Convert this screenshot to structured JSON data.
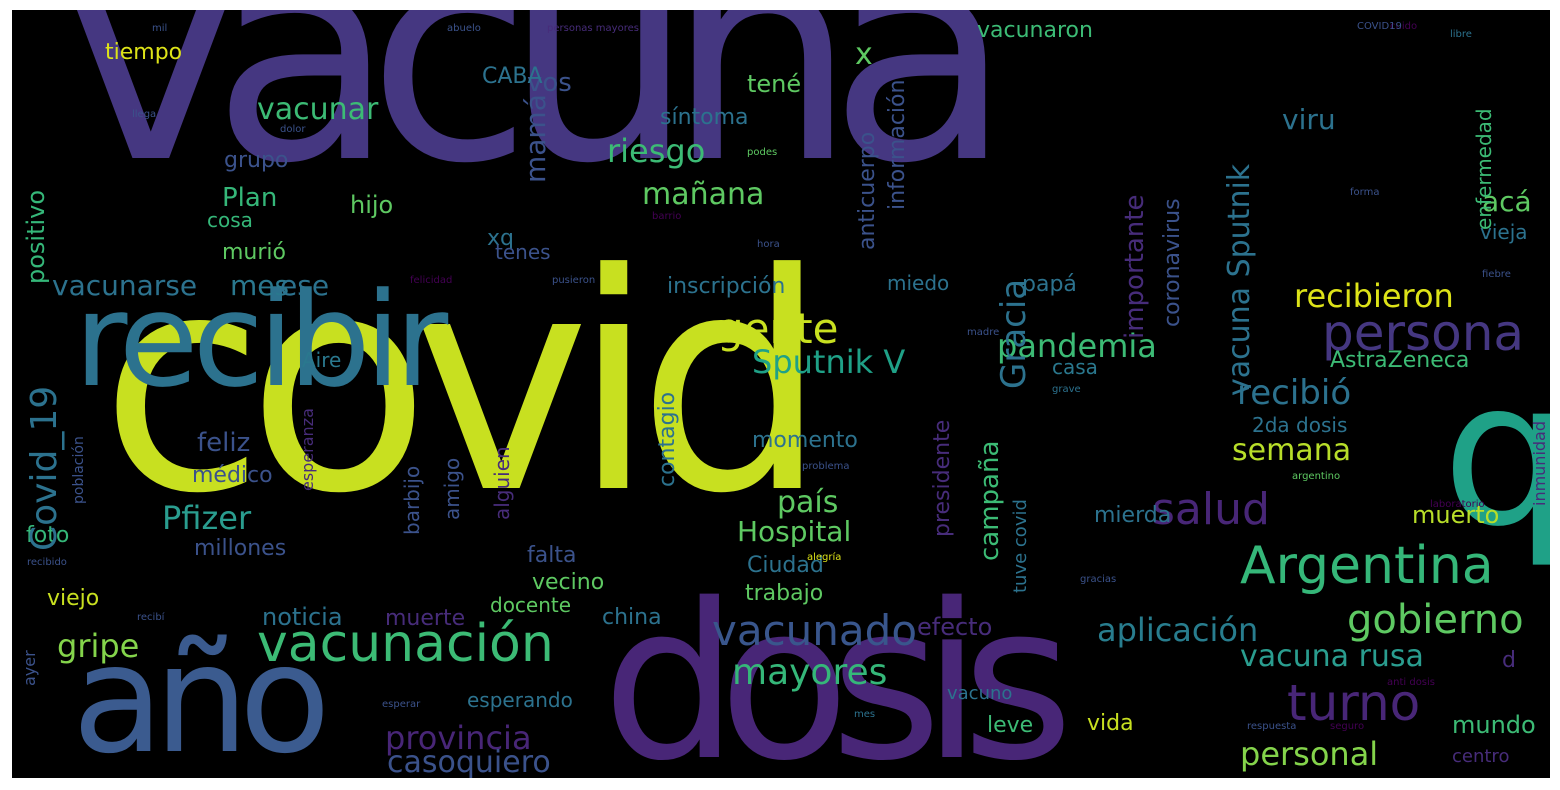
{
  "colors": {
    "background": "#000000",
    "palette": [
      "#440154",
      "#472c7a",
      "#3b528b",
      "#2c728e",
      "#21918c",
      "#28ae80",
      "#5ec962",
      "#addc30",
      "#fde725"
    ]
  },
  "words": [
    {
      "id": "vacuna",
      "text": "vacuna",
      "color": "#453781"
    },
    {
      "id": "covid",
      "text": "covid",
      "color": "#c8e020"
    },
    {
      "id": "dosis",
      "text": "dosis",
      "color": "#482677"
    },
    {
      "id": "ano",
      "text": "año",
      "color": "#3b5b8f"
    },
    {
      "id": "recibir",
      "text": "recibir",
      "color": "#2c728e"
    },
    {
      "id": "q",
      "text": "q",
      "color": "#1fa187"
    },
    {
      "id": "vacunacion",
      "text": "vacunación",
      "color": "#3cbb75"
    },
    {
      "id": "argentina",
      "text": "Argentina",
      "color": "#35b779"
    },
    {
      "id": "persona",
      "text": "persona",
      "color": "#453781"
    },
    {
      "id": "turno",
      "text": "turno",
      "color": "#482677"
    },
    {
      "id": "salud",
      "text": "salud",
      "color": "#482677"
    },
    {
      "id": "vacunado",
      "text": "vacunado",
      "color": "#39568c"
    },
    {
      "id": "gobierno",
      "text": "gobierno",
      "color": "#5ec962"
    },
    {
      "id": "gente",
      "text": "gente",
      "color": "#c8e020"
    },
    {
      "id": "mayores",
      "text": "mayores",
      "color": "#35b779"
    },
    {
      "id": "pfizer",
      "text": "Pfizer",
      "color": "#2a9d8f"
    },
    {
      "id": "sputnikv",
      "text": "Sputnik V",
      "color": "#1fa187"
    },
    {
      "id": "pandemia",
      "text": "pandemia",
      "color": "#3cbb75"
    },
    {
      "id": "recibieron",
      "text": "recibieron",
      "color": "#dde318"
    },
    {
      "id": "recibio",
      "text": "recibió",
      "color": "#2c728e"
    },
    {
      "id": "semana",
      "text": "semana",
      "color": "#b8de29"
    },
    {
      "id": "aplicacion",
      "text": "aplicación",
      "color": "#287d8e"
    },
    {
      "id": "vacunarusa",
      "text": "vacuna rusa",
      "color": "#2a9d8f"
    },
    {
      "id": "personal",
      "text": "personal",
      "color": "#84d44b"
    },
    {
      "id": "provincia",
      "text": "provincia",
      "color": "#482677"
    },
    {
      "id": "gripe",
      "text": "gripe",
      "color": "#84d44b"
    },
    {
      "id": "pais",
      "text": "país",
      "color": "#5ec962"
    },
    {
      "id": "hospital",
      "text": "Hospital",
      "color": "#5ec962"
    },
    {
      "id": "manana",
      "text": "mañana",
      "color": "#5ec962"
    },
    {
      "id": "riesgo",
      "text": "riesgo",
      "color": "#3cbb75"
    },
    {
      "id": "vacunar",
      "text": "vacunar",
      "color": "#3cbb75"
    },
    {
      "id": "vacunarse",
      "text": "vacunarse",
      "color": "#2c728e"
    },
    {
      "id": "mes",
      "text": "mes",
      "color": "#2a788e"
    },
    {
      "id": "ese",
      "text": "ese",
      "color": "#2c728e"
    },
    {
      "id": "casoquiero",
      "text": "casoquiero",
      "color": "#3b528b"
    },
    {
      "id": "vos",
      "text": "vos",
      "color": "#3b528b"
    },
    {
      "id": "x",
      "text": "x",
      "color": "#5ec962"
    },
    {
      "id": "tiempo",
      "text": "tiempo",
      "color": "#dde318"
    },
    {
      "id": "caba",
      "text": "CABA",
      "color": "#2c728e"
    },
    {
      "id": "vacunaron",
      "text": "vacunaron",
      "color": "#3cbb75"
    },
    {
      "id": "tene",
      "text": "tené",
      "color": "#5ec962"
    },
    {
      "id": "sintoma",
      "text": "síntoma",
      "color": "#2c728e"
    },
    {
      "id": "viru",
      "text": "viru",
      "color": "#2c728e"
    },
    {
      "id": "aca",
      "text": "acá",
      "color": "#5ec962"
    },
    {
      "id": "plan",
      "text": "Plan",
      "color": "#35b779"
    },
    {
      "id": "grupo",
      "text": "grupo",
      "color": "#3b528b"
    },
    {
      "id": "hijo",
      "text": "hijo",
      "color": "#5ec962"
    },
    {
      "id": "cosa",
      "text": "cosa",
      "color": "#35b779"
    },
    {
      "id": "xq",
      "text": "xq",
      "color": "#2c728e"
    },
    {
      "id": "murio",
      "text": "murió",
      "color": "#5ec962"
    },
    {
      "id": "tenes",
      "text": "tenes",
      "color": "#3b528b"
    },
    {
      "id": "inscripcion",
      "text": "inscripción",
      "color": "#2c728e"
    },
    {
      "id": "papa",
      "text": "papá",
      "color": "#2c728e"
    },
    {
      "id": "miedo",
      "text": "miedo",
      "color": "#2c728e"
    },
    {
      "id": "aire",
      "text": "Aire",
      "color": "#2a788e"
    },
    {
      "id": "casa",
      "text": "casa",
      "color": "#2a788e"
    },
    {
      "id": "astrazeneca",
      "text": "AstraZeneca",
      "color": "#3cbb75"
    },
    {
      "id": "vieja",
      "text": "vieja",
      "color": "#2c728e"
    },
    {
      "id": "feliz",
      "text": "feliz",
      "color": "#3b528b"
    },
    {
      "id": "medico",
      "text": "médico",
      "color": "#3b528b"
    },
    {
      "id": "momento",
      "text": "momento",
      "color": "#2c728e"
    },
    {
      "id": "foto",
      "text": "foto",
      "color": "#35b779"
    },
    {
      "id": "millones",
      "text": "millones",
      "color": "#3b528b"
    },
    {
      "id": "falta",
      "text": "falta",
      "color": "#3b528b"
    },
    {
      "id": "ciudad",
      "text": "Ciudad",
      "color": "#2c728e"
    },
    {
      "id": "vecino",
      "text": "vecino",
      "color": "#5ec962"
    },
    {
      "id": "trabajo",
      "text": "trabajo",
      "color": "#5ec962"
    },
    {
      "id": "viejo",
      "text": "viejo",
      "color": "#c8e020"
    },
    {
      "id": "noticia",
      "text": "noticia",
      "color": "#2c728e"
    },
    {
      "id": "muerte",
      "text": "muerte",
      "color": "#472c7a"
    },
    {
      "id": "docente",
      "text": "docente",
      "color": "#5ec962"
    },
    {
      "id": "china",
      "text": "china",
      "color": "#2c728e"
    },
    {
      "id": "efecto",
      "text": "efecto",
      "color": "#472c7a"
    },
    {
      "id": "muerto",
      "text": "muerto",
      "color": "#b8de29"
    },
    {
      "id": "mierda",
      "text": "mierda",
      "color": "#2c728e"
    },
    {
      "id": "d",
      "text": "d",
      "color": "#472c7a"
    },
    {
      "id": "mundo",
      "text": "mundo",
      "color": "#3cbb75"
    },
    {
      "id": "vida",
      "text": "vida",
      "color": "#c8e020"
    },
    {
      "id": "leve",
      "text": "leve",
      "color": "#3cbb75"
    },
    {
      "id": "vacuno",
      "text": "vacuno",
      "color": "#2c728e"
    },
    {
      "id": "esperando",
      "text": "esperando",
      "color": "#2c728e"
    },
    {
      "id": "centro",
      "text": "centro",
      "color": "#472c7a"
    },
    {
      "id": "2dadosis",
      "text": "2da dosis",
      "color": "#2c728e"
    },
    {
      "id": "covid19",
      "text": "Covid_19",
      "color": "#2c728e",
      "v": true
    },
    {
      "id": "positivo",
      "text": "positivo",
      "color": "#35b779",
      "v": true
    },
    {
      "id": "gracia",
      "text": "Gracia",
      "color": "#2c728e",
      "v": true
    },
    {
      "id": "mama",
      "text": "mamá",
      "color": "#3b528b",
      "v": true
    },
    {
      "id": "importante",
      "text": "importante",
      "color": "#472c7a",
      "v": true
    },
    {
      "id": "vacunasputnik",
      "text": "vacuna Sputnik",
      "color": "#2c728e",
      "v": true
    },
    {
      "id": "coronavirus",
      "text": "coronavirus",
      "color": "#3b528b",
      "v": true
    },
    {
      "id": "anticuerpo",
      "text": "anticuerpo",
      "color": "#3b528b",
      "v": true
    },
    {
      "id": "informacion",
      "text": "información",
      "color": "#3b528b",
      "v": true
    },
    {
      "id": "enfermedad",
      "text": "enfermedad",
      "color": "#3cbb75",
      "v": true
    },
    {
      "id": "campana",
      "text": "campaña",
      "color": "#3cbb75",
      "v": true
    },
    {
      "id": "contagio",
      "text": "contagio",
      "color": "#2c728e",
      "v": true
    },
    {
      "id": "presidente",
      "text": "presidente",
      "color": "#472c7a",
      "v": true
    },
    {
      "id": "alguien",
      "text": "alguien",
      "color": "#472c7a",
      "v": true
    },
    {
      "id": "barbijo",
      "text": "barbijo",
      "color": "#3b528b",
      "v": true
    },
    {
      "id": "amigo",
      "text": "amigo",
      "color": "#3b528b",
      "v": true
    },
    {
      "id": "esperanza",
      "text": "esperanza",
      "color": "#472c7a",
      "v": true
    },
    {
      "id": "poblacion",
      "text": "población",
      "color": "#3b528b",
      "v": true
    },
    {
      "id": "tuvecovid",
      "text": "tuve covid",
      "color": "#2c728e",
      "v": true
    },
    {
      "id": "ayer",
      "text": "ayer",
      "color": "#3b528b",
      "v": true
    },
    {
      "id": "inmunidad",
      "text": "inmunidad",
      "color": "#472c7a",
      "v": true
    },
    {
      "id": "personasmayores",
      "text": "personas mayores",
      "color": "#472c7a"
    },
    {
      "id": "abuelo",
      "text": "abuelo",
      "color": "#3b528b"
    },
    {
      "id": "llega",
      "text": "llega",
      "color": "#3b528b"
    },
    {
      "id": "dolor",
      "text": "dolor",
      "color": "#3b528b"
    },
    {
      "id": "hora",
      "text": "hora",
      "color": "#3b528b"
    },
    {
      "id": "barrio",
      "text": "barrio",
      "color": "#440154"
    },
    {
      "id": "podes",
      "text": "podes",
      "color": "#5ec962"
    },
    {
      "id": "felicidad",
      "text": "felicidad",
      "color": "#440154"
    },
    {
      "id": "pusieron",
      "text": "pusieron",
      "color": "#3b528b"
    },
    {
      "id": "libre",
      "text": "libre",
      "color": "#2c728e"
    },
    {
      "id": "forma",
      "text": "forma",
      "color": "#3b528b"
    },
    {
      "id": "fiebre",
      "text": "fiebre",
      "color": "#3b528b"
    },
    {
      "id": "madre",
      "text": "madre",
      "color": "#3b528b"
    },
    {
      "id": "grave",
      "text": "grave",
      "color": "#2c728e"
    },
    {
      "id": "problema",
      "text": "problema",
      "color": "#3b528b"
    },
    {
      "id": "alegria",
      "text": "alegría",
      "color": "#dde318"
    },
    {
      "id": "argentino",
      "text": "argentino",
      "color": "#5ec962"
    },
    {
      "id": "laboratorio",
      "text": "laboratorio",
      "color": "#440154"
    },
    {
      "id": "recibi",
      "text": "recibí",
      "color": "#3b528b"
    },
    {
      "id": "mes2",
      "text": "mes",
      "color": "#2c728e"
    },
    {
      "id": "respuesta",
      "text": "respuesta",
      "color": "#3b528b"
    },
    {
      "id": "seguro",
      "text": "seguro",
      "color": "#440154"
    },
    {
      "id": "antidosis",
      "text": "anti dosis",
      "color": "#440154"
    },
    {
      "id": "cuido",
      "text": "cuido",
      "color": "#440154"
    },
    {
      "id": "covid19b",
      "text": "COVID19",
      "color": "#3b528b"
    },
    {
      "id": "gracias",
      "text": "gracias",
      "color": "#3b528b"
    },
    {
      "id": "mil",
      "text": "mil",
      "color": "#3b528b"
    },
    {
      "id": "esperar",
      "text": "esperar",
      "color": "#3b528b"
    },
    {
      "id": "recibido",
      "text": "recibido",
      "color": "#3b528b"
    }
  ]
}
